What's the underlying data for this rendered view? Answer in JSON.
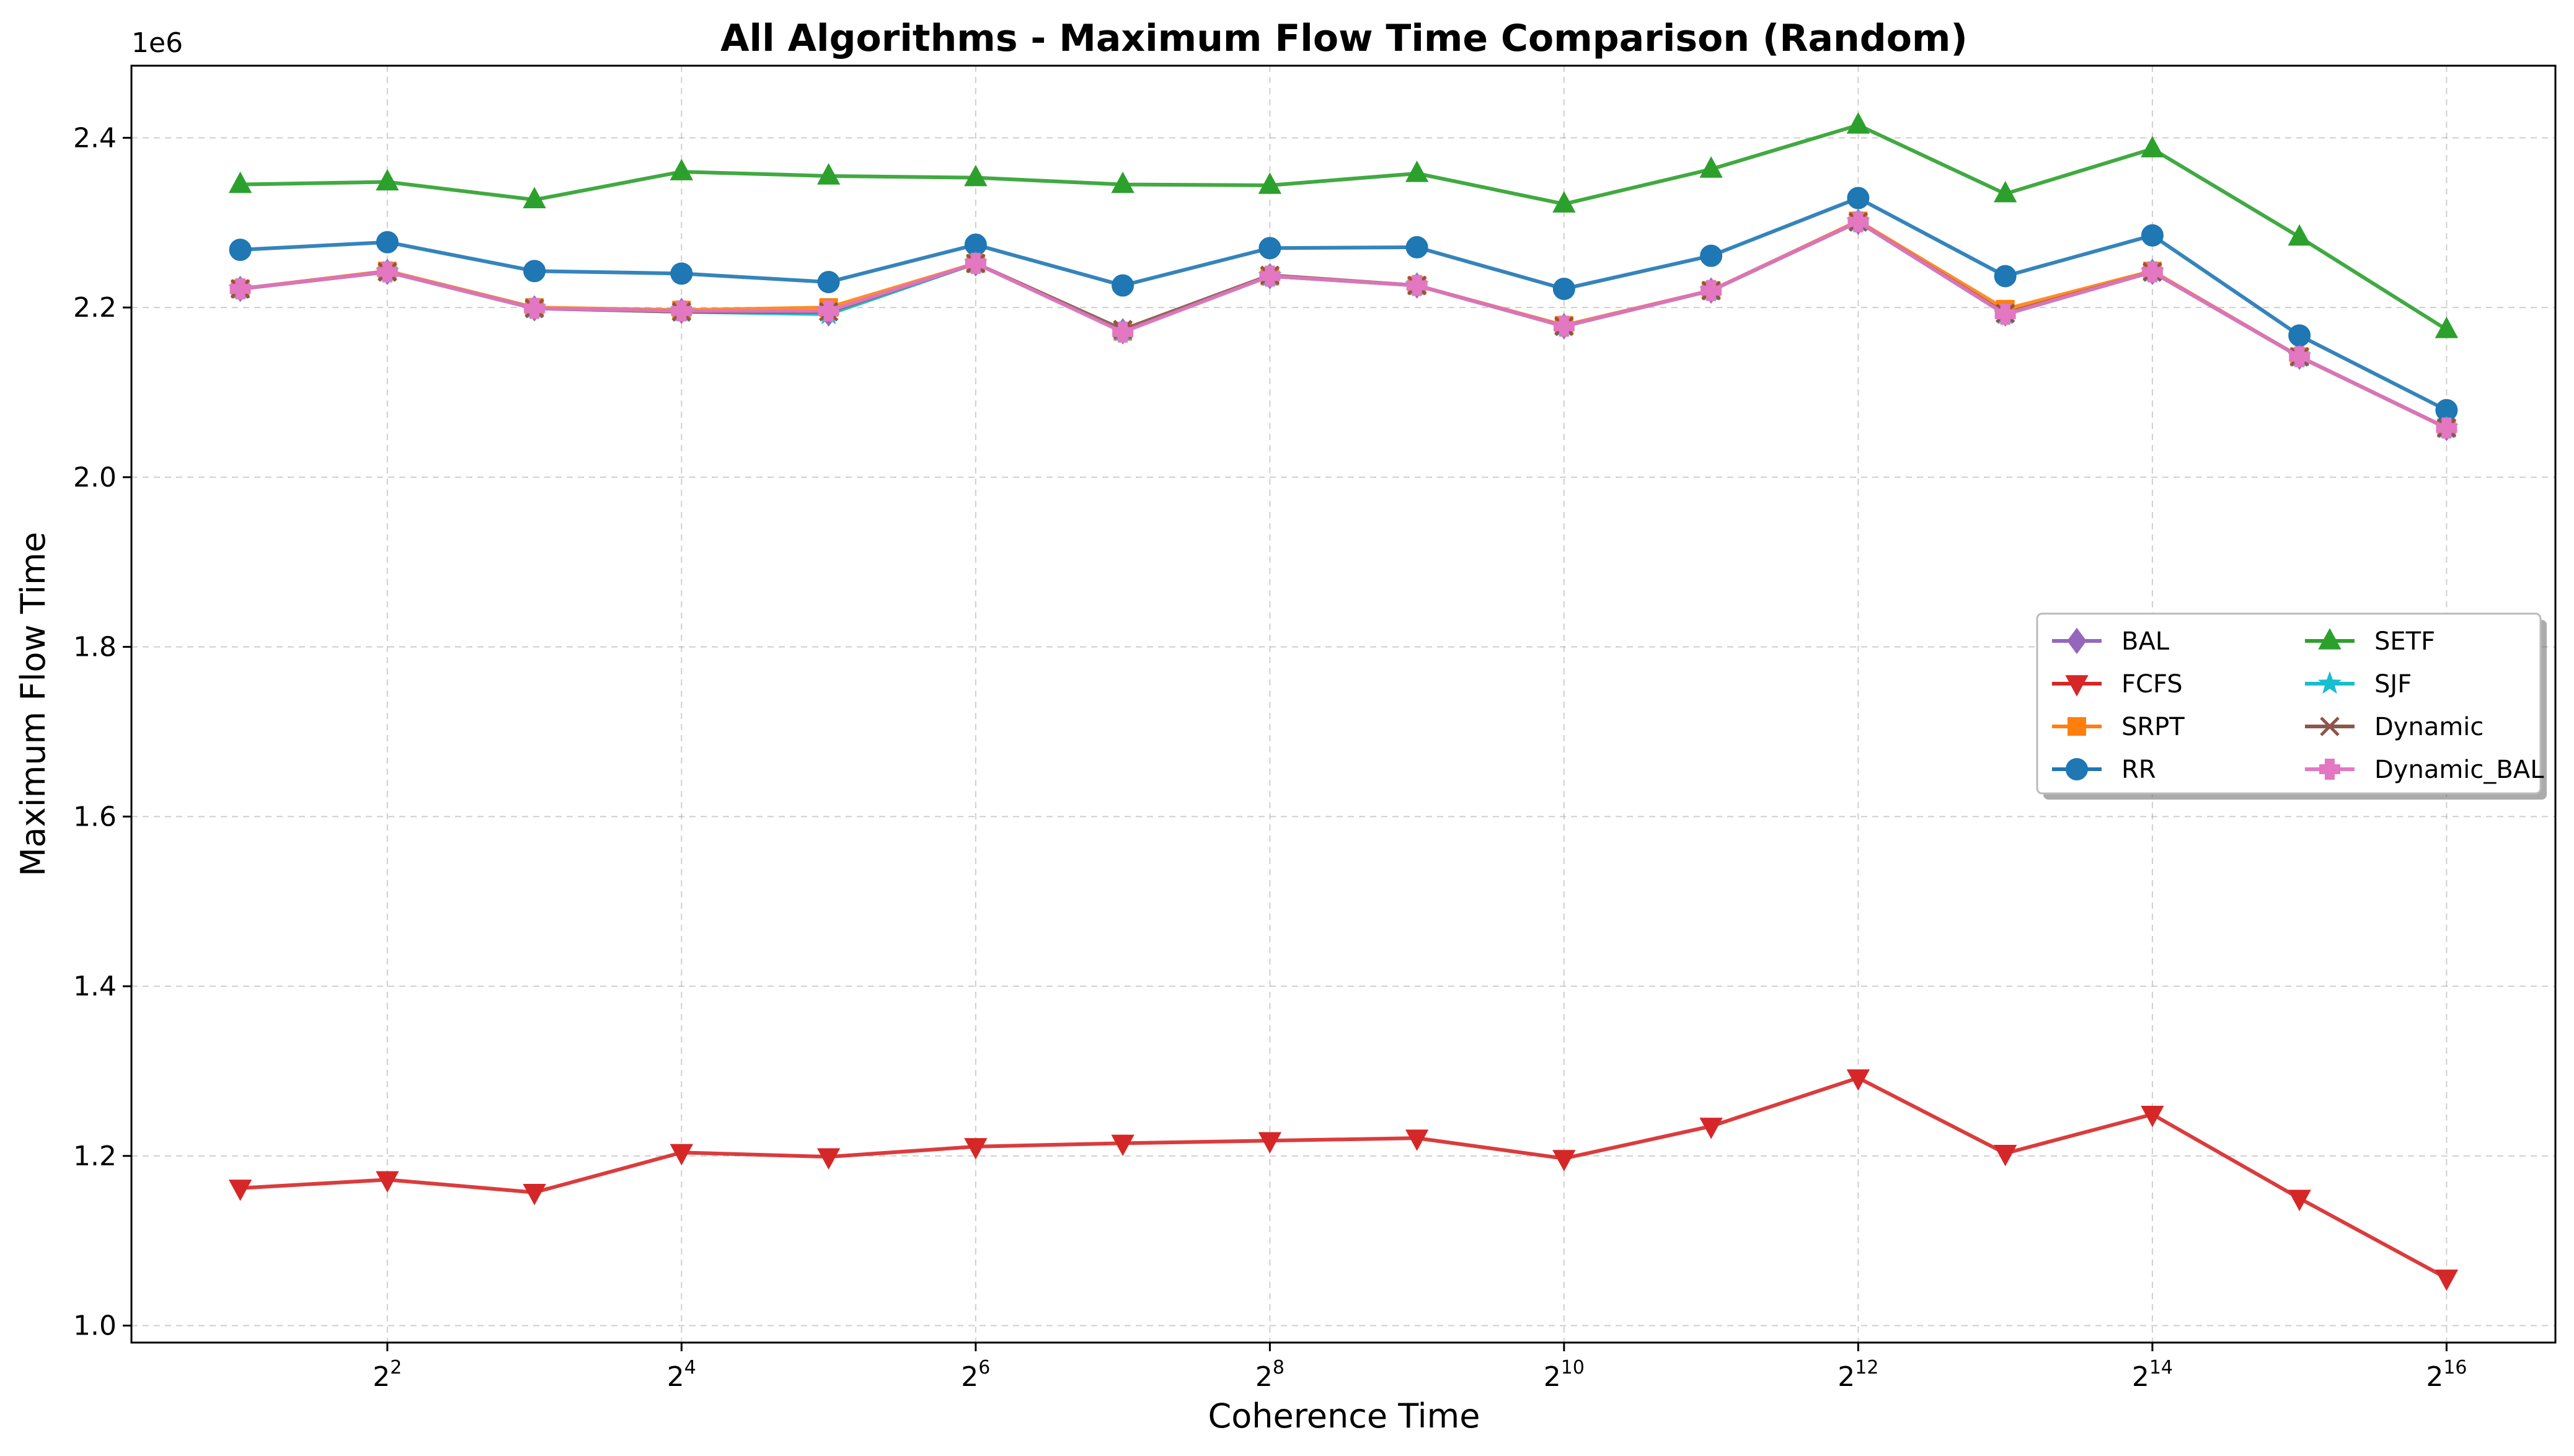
{
  "chart_data": {
    "type": "line",
    "title": "All Algorithms - Maximum Flow Time Comparison (Random)",
    "xlabel": "Coherence Time",
    "ylabel": "Maximum Flow Time",
    "y_offset_label": "1e6",
    "x_scale": "log2",
    "x": [
      2,
      4,
      8,
      16,
      32,
      64,
      128,
      256,
      512,
      1024,
      2048,
      4096,
      8192,
      16384,
      32768,
      65536
    ],
    "x_ticks": [
      4,
      16,
      64,
      256,
      1024,
      4096,
      16384,
      65536
    ],
    "x_tick_labels": [
      {
        "base": "2",
        "exp": "2"
      },
      {
        "base": "2",
        "exp": "4"
      },
      {
        "base": "2",
        "exp": "6"
      },
      {
        "base": "2",
        "exp": "8"
      },
      {
        "base": "2",
        "exp": "10"
      },
      {
        "base": "2",
        "exp": "12"
      },
      {
        "base": "2",
        "exp": "14"
      },
      {
        "base": "2",
        "exp": "16"
      }
    ],
    "xlim_log2": [
      0.26,
      16.74
    ],
    "ylim": [
      980000,
      2485000
    ],
    "y_ticks": [
      1000000,
      1200000,
      1400000,
      1600000,
      1800000,
      2000000,
      2200000,
      2400000
    ],
    "y_tick_labels": [
      "1.0",
      "1.2",
      "1.4",
      "1.6",
      "1.8",
      "2.0",
      "2.2",
      "2.4"
    ],
    "grid": true,
    "legend_position": "center-right",
    "series": [
      {
        "name": "BAL",
        "color": "#9467bd",
        "marker": "diamond",
        "values": [
          2222000,
          2242000,
          2199000,
          2196000,
          2193000,
          2252000,
          2172000,
          2237000,
          2226000,
          2178000,
          2220000,
          2301000,
          2193000,
          2242000,
          2142000,
          2058000
        ]
      },
      {
        "name": "FCFS",
        "color": "#d62728",
        "marker": "triangle-down",
        "values": [
          1162000,
          1172000,
          1157000,
          1204000,
          1199000,
          1211000,
          1215000,
          1218000,
          1221000,
          1197000,
          1235000,
          1292000,
          1203000,
          1249000,
          1150000,
          1056000
        ]
      },
      {
        "name": "SRPT",
        "color": "#ff7f0e",
        "marker": "square",
        "values": [
          2222000,
          2243000,
          2200000,
          2197000,
          2200000,
          2252000,
          2172000,
          2237000,
          2226000,
          2179000,
          2220000,
          2302000,
          2198000,
          2243000,
          2142000,
          2058000
        ]
      },
      {
        "name": "RR",
        "color": "#1f77b4",
        "marker": "circle",
        "values": [
          2268000,
          2277000,
          2243000,
          2240000,
          2230000,
          2274000,
          2226000,
          2270000,
          2271000,
          2222000,
          2261000,
          2329000,
          2237000,
          2285000,
          2167000,
          2079000
        ]
      },
      {
        "name": "SETF",
        "color": "#2ca02c",
        "marker": "triangle-up",
        "values": [
          2345000,
          2348000,
          2327000,
          2360000,
          2355000,
          2353000,
          2345000,
          2344000,
          2358000,
          2322000,
          2363000,
          2415000,
          2334000,
          2387000,
          2283000,
          2174000
        ]
      },
      {
        "name": "SJF",
        "color": "#17becf",
        "marker": "star",
        "values": [
          2222000,
          2242000,
          2199000,
          2195000,
          2192000,
          2252000,
          2172000,
          2237000,
          2226000,
          2178000,
          2220000,
          2301000,
          2192000,
          2242000,
          2142000,
          2058000
        ]
      },
      {
        "name": "Dynamic",
        "color": "#8c564b",
        "marker": "x",
        "values": [
          2222000,
          2242000,
          2199000,
          2195000,
          2195000,
          2252000,
          2174000,
          2238000,
          2226000,
          2178000,
          2220000,
          2301000,
          2193000,
          2242000,
          2142000,
          2058000
        ]
      },
      {
        "name": "Dynamic_BAL",
        "color": "#e377c2",
        "marker": "plus-filled",
        "values": [
          2222000,
          2242000,
          2199000,
          2196000,
          2196000,
          2252000,
          2171000,
          2237000,
          2226000,
          2178000,
          2220000,
          2301000,
          2192000,
          2242000,
          2142000,
          2058000
        ]
      }
    ],
    "legend_columns": [
      [
        "BAL",
        "FCFS",
        "SRPT",
        "RR"
      ],
      [
        "SETF",
        "SJF",
        "Dynamic",
        "Dynamic_BAL"
      ]
    ]
  }
}
